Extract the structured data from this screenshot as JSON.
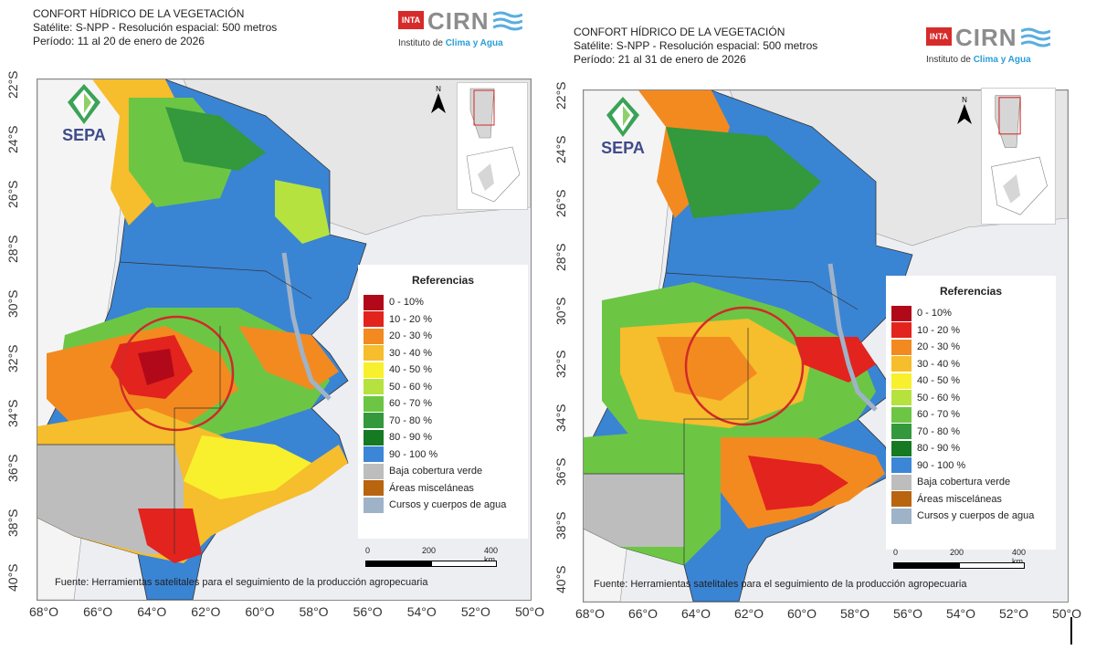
{
  "panels": [
    {
      "title_line1": "CONFORT HÍDRICO DE LA VEGETACIÓN",
      "title_line2": "Satélite: S-NPP - Resolución espacial: 500 metros",
      "title_line3": "Período: 11 al 20 de enero de 2026"
    },
    {
      "title_line1": "CONFORT HÍDRICO DE LA VEGETACIÓN",
      "title_line2": "Satélite: S-NPP - Resolución espacial: 500 metros",
      "title_line3": "Período: 21 al 31 de enero de 2026"
    }
  ],
  "logo": {
    "inta": "INTA",
    "cirn": "CIRN",
    "sub_prefix": "Instituto de ",
    "sub_highlight": "Clima y Agua"
  },
  "sepa": "SEPA",
  "north": "N",
  "legend": {
    "title": "Referencias",
    "items": [
      {
        "label": "0 - 10%",
        "color": "#b2091a"
      },
      {
        "label": "10 - 20 %",
        "color": "#e3231e"
      },
      {
        "label": "20 - 30 %",
        "color": "#f38a20"
      },
      {
        "label": "30 - 40 %",
        "color": "#f6bd2c"
      },
      {
        "label": "40 - 50 %",
        "color": "#f8f02c"
      },
      {
        "label": "50 - 60 %",
        "color": "#b6e23f"
      },
      {
        "label": "60 - 70 %",
        "color": "#6cc644"
      },
      {
        "label": "70 - 80 %",
        "color": "#34983c"
      },
      {
        "label": "80 - 90 %",
        "color": "#157a22"
      },
      {
        "label": "90 - 100 %",
        "color": "#3b86d6"
      },
      {
        "label": "Baja cobertura verde",
        "color": "#bdbdbd"
      },
      {
        "label": "Áreas misceláneas",
        "color": "#b9640e"
      },
      {
        "label": "Cursos y cuerpos de agua",
        "color": "#9fb3c8"
      }
    ]
  },
  "scale": {
    "t0": "0",
    "t1": "200",
    "t2": "400 km"
  },
  "source": "Fuente:  Herramientas satelitales para el seguimiento de la producción agropecuaria",
  "lat_labels": [
    "22°S",
    "24°S",
    "26°S",
    "28°S",
    "30°S",
    "32°S",
    "34°S",
    "36°S",
    "38°S",
    "40°S"
  ],
  "lon_labels": [
    "68°O",
    "66°O",
    "64°O",
    "62°O",
    "60°O",
    "58°O",
    "56°O",
    "54°O",
    "52°O",
    "50°O"
  ]
}
